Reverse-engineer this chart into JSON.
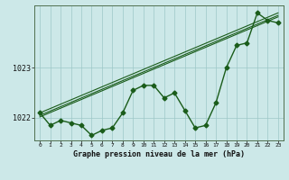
{
  "title": "Graphe pression niveau de la mer (hPa)",
  "background_color": "#cce8e8",
  "plot_bg_color": "#cce8e8",
  "line_color": "#1a5c1a",
  "grid_color": "#9ec8c8",
  "x_values": [
    0,
    1,
    2,
    3,
    4,
    5,
    6,
    7,
    8,
    9,
    10,
    11,
    12,
    13,
    14,
    15,
    16,
    17,
    18,
    19,
    20,
    21,
    22,
    23
  ],
  "main_data": [
    1022.1,
    1021.85,
    1021.95,
    1021.9,
    1021.85,
    1021.65,
    1021.75,
    1021.8,
    1022.1,
    1022.55,
    1022.65,
    1022.65,
    1022.4,
    1022.5,
    1022.15,
    1021.8,
    1021.85,
    1022.3,
    1023.0,
    1023.45,
    1023.5,
    1024.1,
    1023.95,
    1023.9
  ],
  "ylim": [
    1021.55,
    1024.25
  ],
  "yticks": [
    1022,
    1023
  ],
  "xticks": [
    0,
    1,
    2,
    3,
    4,
    5,
    6,
    7,
    8,
    9,
    10,
    11,
    12,
    13,
    14,
    15,
    16,
    17,
    18,
    19,
    20,
    21,
    22,
    23
  ],
  "marker": "D",
  "marker_size": 2.5,
  "line_width": 1.0,
  "trend_line_count": 3,
  "trend_offsets": [
    -0.03,
    0.0,
    0.05
  ]
}
